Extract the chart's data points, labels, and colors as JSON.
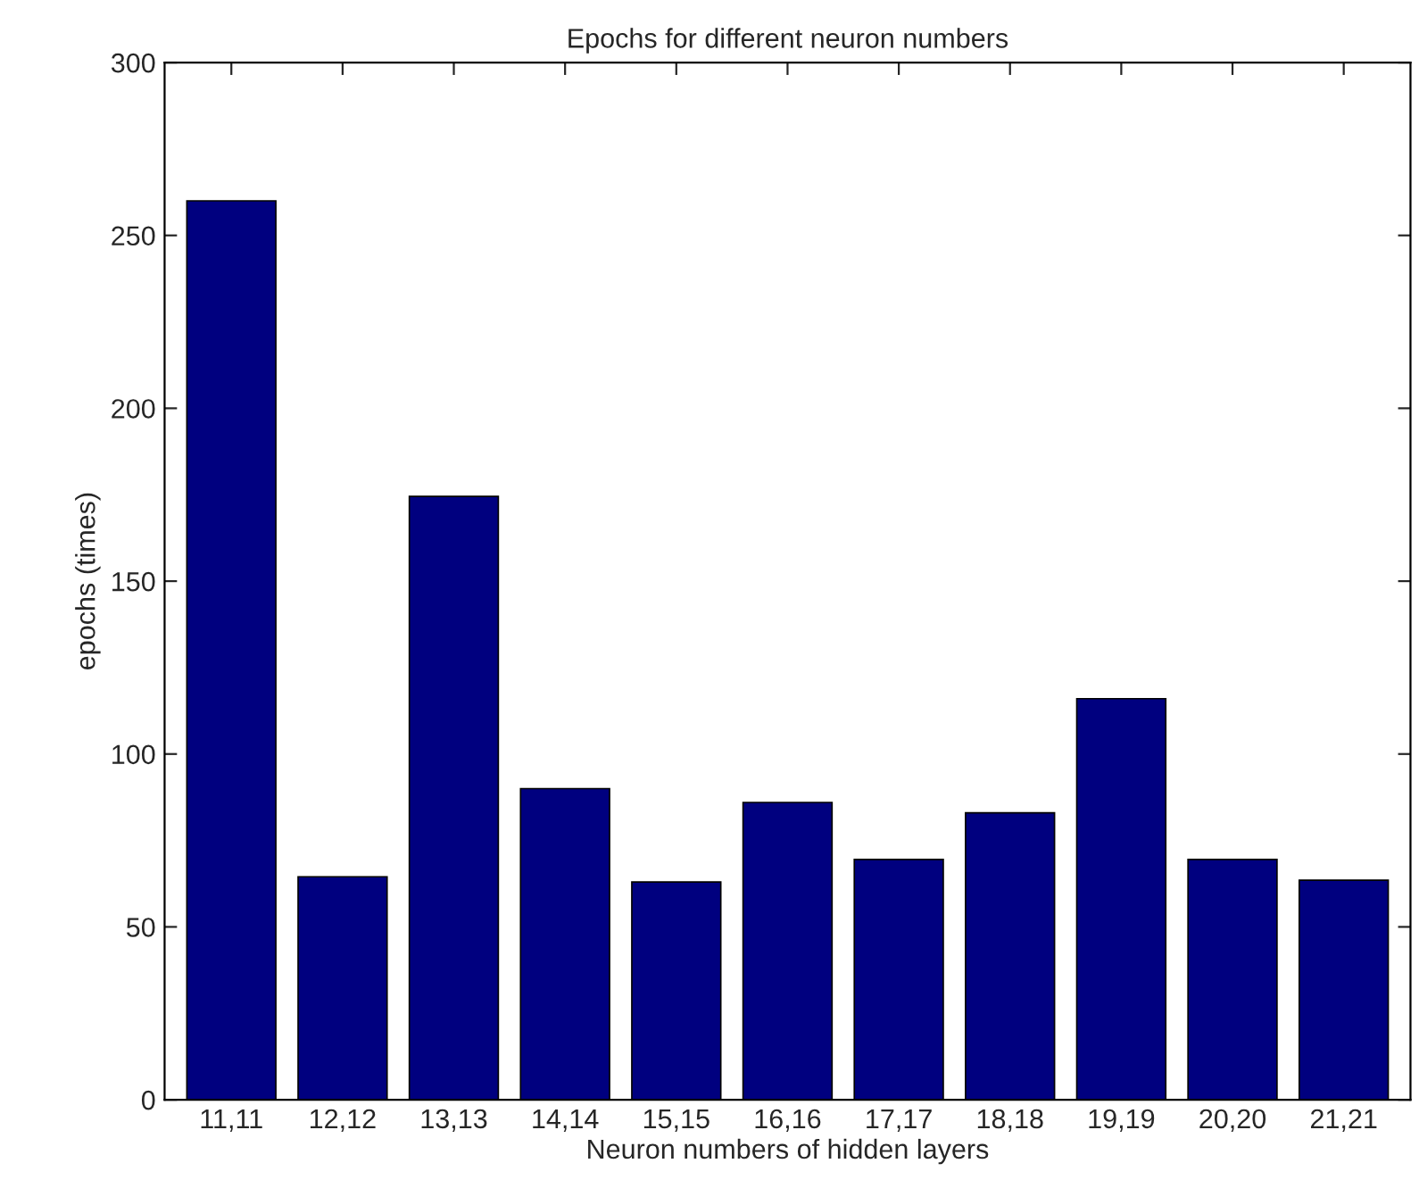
{
  "chart_data": {
    "type": "bar",
    "title": "Epochs for different neuron numbers",
    "xlabel": "Neuron numbers of hidden layers",
    "ylabel": "epochs (times)",
    "categories": [
      "11,11",
      "12,12",
      "13,13",
      "14,14",
      "15,15",
      "16,16",
      "17,17",
      "18,18",
      "19,19",
      "20,20",
      "21,21"
    ],
    "values": [
      260,
      64.5,
      174.5,
      90,
      63,
      86,
      69.5,
      83,
      116,
      69.5,
      63.5
    ],
    "color": "#00007f",
    "ylim": [
      0,
      300
    ],
    "yticks": [
      0,
      50,
      100,
      150,
      200,
      250,
      300
    ],
    "grid": false,
    "legend": false
  }
}
